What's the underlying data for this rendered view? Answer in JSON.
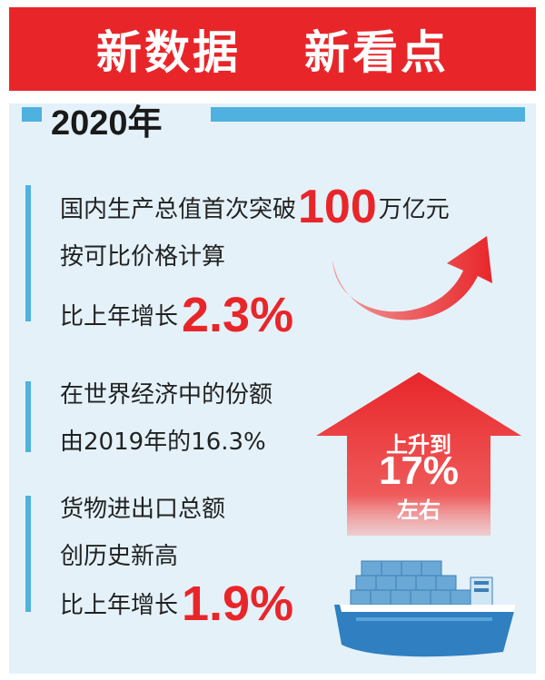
{
  "banner": {
    "left": "新数据",
    "right": "新看点"
  },
  "year": "2020年",
  "gdp": {
    "line1_prefix": "国内生产总值首次突破",
    "line1_value": "100",
    "line1_suffix": "万亿元",
    "line2": "按可比价格计算",
    "line3_prefix": "比上年增长",
    "line3_value": "2.3%"
  },
  "world_share": {
    "line1": "在世界经济中的份额",
    "line2": "由2019年的16.3%",
    "arrow_top": "上升到",
    "arrow_value": "17%",
    "arrow_bottom": "左右"
  },
  "trade": {
    "line1": "货物进出口总额",
    "line2": "创历史新高",
    "line3_prefix": "比上年增长",
    "line3_value": "1.9%"
  },
  "colors": {
    "accent_red": "#e8262a",
    "accent_blue": "#4fb1df",
    "panel_bg": "#e4f1f9"
  },
  "icons": [
    "curved-up-arrow-icon",
    "up-arrow-icon",
    "cargo-ship-icon"
  ]
}
